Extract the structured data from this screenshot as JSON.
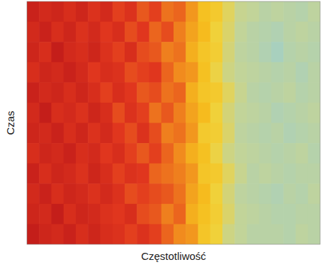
{
  "chart_data": {
    "type": "heatmap",
    "x_label": "Częstotliwość",
    "y_label": "Czas",
    "tick_labels": false,
    "cells": [
      [
        92,
        88,
        90,
        86,
        90,
        84,
        88,
        80,
        84,
        76,
        80,
        72,
        74,
        66,
        58,
        54,
        44,
        36,
        34,
        30,
        32,
        30,
        28,
        32
      ],
      [
        88,
        92,
        86,
        90,
        84,
        88,
        82,
        86,
        78,
        82,
        74,
        78,
        70,
        64,
        60,
        50,
        42,
        34,
        30,
        28,
        26,
        30,
        32,
        30
      ],
      [
        90,
        86,
        94,
        88,
        86,
        90,
        84,
        80,
        86,
        78,
        76,
        70,
        72,
        62,
        56,
        52,
        40,
        32,
        30,
        26,
        22,
        28,
        30,
        28
      ],
      [
        86,
        90,
        88,
        92,
        88,
        82,
        86,
        84,
        78,
        80,
        82,
        74,
        68,
        66,
        58,
        48,
        38,
        34,
        32,
        30,
        28,
        30,
        26,
        30
      ],
      [
        92,
        88,
        90,
        86,
        90,
        86,
        80,
        86,
        82,
        76,
        78,
        72,
        74,
        62,
        56,
        54,
        44,
        36,
        30,
        28,
        30,
        32,
        28,
        30
      ],
      [
        88,
        94,
        86,
        88,
        84,
        90,
        86,
        78,
        84,
        80,
        72,
        76,
        70,
        64,
        60,
        50,
        40,
        34,
        32,
        30,
        26,
        28,
        30,
        32
      ],
      [
        90,
        88,
        92,
        86,
        90,
        84,
        88,
        82,
        78,
        84,
        78,
        70,
        72,
        66,
        54,
        52,
        42,
        32,
        30,
        28,
        30,
        26,
        28,
        30
      ],
      [
        86,
        90,
        88,
        92,
        86,
        88,
        82,
        86,
        80,
        76,
        80,
        74,
        68,
        62,
        58,
        48,
        38,
        34,
        32,
        30,
        28,
        30,
        32,
        28
      ],
      [
        92,
        86,
        90,
        88,
        84,
        90,
        86,
        80,
        84,
        82,
        74,
        72,
        70,
        66,
        56,
        54,
        44,
        36,
        30,
        32,
        30,
        28,
        30,
        30
      ],
      [
        88,
        92,
        86,
        90,
        88,
        84,
        88,
        84,
        78,
        80,
        78,
        76,
        72,
        64,
        60,
        50,
        40,
        32,
        30,
        28,
        26,
        30,
        28,
        32
      ],
      [
        90,
        88,
        94,
        86,
        90,
        88,
        84,
        82,
        86,
        78,
        76,
        70,
        74,
        62,
        58,
        52,
        42,
        34,
        32,
        30,
        28,
        28,
        30,
        30
      ],
      [
        94,
        90,
        88,
        92,
        86,
        90,
        86,
        84,
        80,
        84,
        80,
        74,
        68,
        66,
        56,
        50,
        38,
        34,
        30,
        30,
        30,
        28,
        32,
        30
      ]
    ]
  }
}
